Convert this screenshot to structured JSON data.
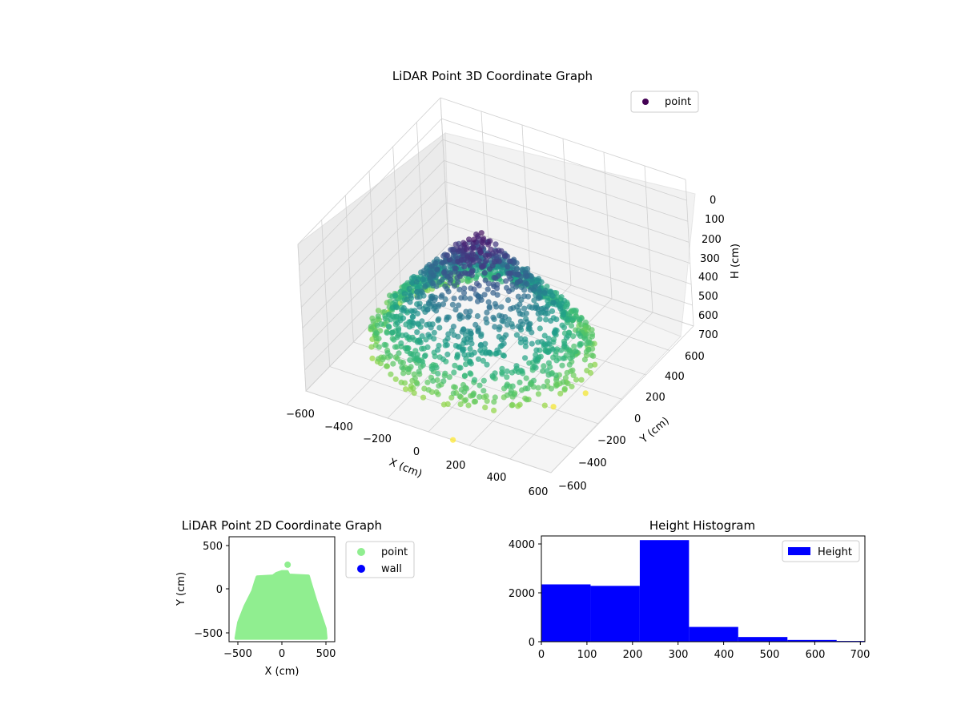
{
  "chart_data": [
    {
      "type": "scatter3d",
      "title": "LiDAR Point 3D Coordinate Graph",
      "xlabel": "X (cm)",
      "ylabel": "Y (cm)",
      "zlabel": "H (cm)",
      "xlim": [
        -600,
        600
      ],
      "ylim": [
        -600,
        600
      ],
      "zlim": [
        0,
        700
      ],
      "z_inverted": true,
      "xticks": [
        "−600",
        "−400",
        "−200",
        "0",
        "200",
        "400",
        "600"
      ],
      "yticks": [
        "−600",
        "−400",
        "−200",
        "0",
        "200",
        "400",
        "600"
      ],
      "zticks": [
        "0",
        "100",
        "200",
        "300",
        "400",
        "500",
        "600",
        "700"
      ],
      "colormap": "viridis",
      "grid": true,
      "legend": {
        "position": "top-right",
        "entries": [
          "point"
        ]
      },
      "series": [
        {
          "name": "point",
          "color": "#440154",
          "shape": "dome/cylinder of points roughly x in [-500,500], y in [-550,300], H from 0 (top) to ~600 (bottom)",
          "outliers": [
            {
              "x": 120,
              "y": -600,
              "h": 700
            },
            {
              "x": 380,
              "y": -200,
              "h": 690
            },
            {
              "x": 450,
              "y": -50,
              "h": 690
            }
          ]
        }
      ]
    },
    {
      "type": "scatter",
      "title": "LiDAR Point 2D Coordinate Graph",
      "xlabel": "X (cm)",
      "ylabel": "Y (cm)",
      "xlim": [
        -600,
        600
      ],
      "ylim": [
        -600,
        600
      ],
      "xticks": [
        "−500",
        "0",
        "500"
      ],
      "yticks": [
        "500",
        "0",
        "−500"
      ],
      "legend": {
        "position": "outside-right",
        "entries": [
          "point",
          "wall"
        ]
      },
      "series": [
        {
          "name": "point",
          "color": "#90ee90",
          "region_outline": [
            [
              -520,
              -560
            ],
            [
              -490,
              -380
            ],
            [
              -420,
              -200
            ],
            [
              -330,
              -20
            ],
            [
              -300,
              80
            ],
            [
              -280,
              140
            ],
            [
              -100,
              150
            ],
            [
              -60,
              180
            ],
            [
              0,
              200
            ],
            [
              60,
              200
            ],
            [
              80,
              160
            ],
            [
              300,
              150
            ],
            [
              320,
              80
            ],
            [
              380,
              -120
            ],
            [
              440,
              -300
            ],
            [
              490,
              -450
            ],
            [
              500,
              -560
            ]
          ],
          "outliers": [
            [
              65,
              280
            ]
          ]
        },
        {
          "name": "wall",
          "color": "#0000ff",
          "points": []
        }
      ]
    },
    {
      "type": "histogram",
      "title": "Height Histogram",
      "xlim": [
        0,
        710
      ],
      "ylim": [
        0,
        4300
      ],
      "xticks": [
        "0",
        "100",
        "200",
        "300",
        "400",
        "500",
        "600",
        "700"
      ],
      "yticks": [
        "0",
        "2000",
        "4000"
      ],
      "legend": {
        "position": "top-right",
        "entries": [
          "Height"
        ]
      },
      "series": [
        {
          "name": "Height",
          "color": "#0000ff",
          "bin_edges": [
            0,
            108,
            216,
            324,
            432,
            540,
            648,
            710
          ],
          "counts": [
            2330,
            2270,
            4130,
            600,
            190,
            70,
            30
          ]
        }
      ]
    }
  ]
}
